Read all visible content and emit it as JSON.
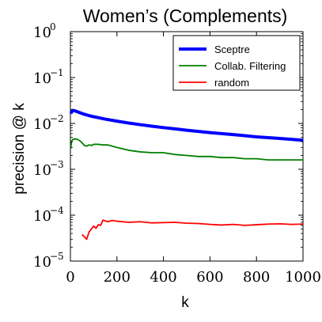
{
  "chart_data": {
    "type": "line",
    "title": "Women’s (Complements)",
    "xlabel": "k",
    "ylabel": "precision @ k",
    "xlim": [
      0,
      1000
    ],
    "ylim": [
      1e-05,
      1
    ],
    "yscale": "log",
    "xticks": [
      0,
      200,
      400,
      600,
      800,
      1000
    ],
    "xtick_labels": [
      "0",
      "200",
      "400",
      "600",
      "800",
      "1000"
    ],
    "yticks": [
      1e-05,
      0.0001,
      0.001,
      0.01,
      0.1,
      1
    ],
    "ytick_labels": [
      {
        "base": "10",
        "exp": "−5"
      },
      {
        "base": "10",
        "exp": "−4"
      },
      {
        "base": "10",
        "exp": "−3"
      },
      {
        "base": "10",
        "exp": "−2"
      },
      {
        "base": "10",
        "exp": "−1"
      },
      {
        "base": "10",
        "exp": "0"
      }
    ],
    "grid": false,
    "legend_position": "top-right",
    "series": [
      {
        "name": "Sceptre",
        "color": "#0000ff",
        "linewidth": "thick",
        "x": [
          1,
          10,
          20,
          40,
          60,
          80,
          100,
          150,
          200,
          250,
          300,
          350,
          400,
          450,
          500,
          550,
          600,
          650,
          700,
          750,
          800,
          850,
          900,
          950,
          1000
        ],
        "y": [
          0.0165,
          0.0192,
          0.0188,
          0.0172,
          0.0158,
          0.0148,
          0.014,
          0.0124,
          0.0112,
          0.0102,
          0.0094,
          0.0087,
          0.0081,
          0.0076,
          0.0071,
          0.0067,
          0.0063,
          0.006,
          0.0057,
          0.0054,
          0.0051,
          0.0049,
          0.0047,
          0.0045,
          0.0043
        ]
      },
      {
        "name": "Collab. Filtering",
        "color": "#008000",
        "linewidth": "normal",
        "x": [
          1,
          5,
          10,
          20,
          30,
          40,
          50,
          60,
          70,
          80,
          90,
          100,
          120,
          140,
          160,
          180,
          200,
          250,
          300,
          350,
          400,
          450,
          500,
          550,
          600,
          650,
          700,
          750,
          800,
          850,
          900,
          950,
          1000
        ],
        "y": [
          0.0028,
          0.004,
          0.0045,
          0.0046,
          0.0045,
          0.0042,
          0.0038,
          0.0033,
          0.0032,
          0.0034,
          0.0033,
          0.0035,
          0.0035,
          0.0034,
          0.0034,
          0.0032,
          0.003,
          0.0026,
          0.0024,
          0.0023,
          0.0023,
          0.0021,
          0.002,
          0.0019,
          0.0019,
          0.0018,
          0.0018,
          0.0017,
          0.0017,
          0.0016,
          0.0016,
          0.0016,
          0.0016
        ]
      },
      {
        "name": "random",
        "color": "#ff0000",
        "linewidth": "normal",
        "x": [
          50,
          70,
          80,
          100,
          110,
          120,
          130,
          140,
          150,
          160,
          180,
          200,
          250,
          300,
          350,
          400,
          450,
          500,
          550,
          600,
          650,
          700,
          750,
          800,
          850,
          900,
          950,
          1000
        ],
        "y": [
          3.8e-05,
          3e-05,
          4.3e-05,
          5.8e-05,
          5.2e-05,
          6.2e-05,
          6e-05,
          7.8e-05,
          7.5e-05,
          7.2e-05,
          7.7e-05,
          7.4e-05,
          7e-05,
          7.2e-05,
          6.8e-05,
          6.9e-05,
          7e-05,
          6.7e-05,
          6.6e-05,
          6.3e-05,
          6.1e-05,
          6.3e-05,
          6e-05,
          6.2e-05,
          6.4e-05,
          6.5e-05,
          6.3e-05,
          6.4e-05
        ]
      }
    ]
  }
}
